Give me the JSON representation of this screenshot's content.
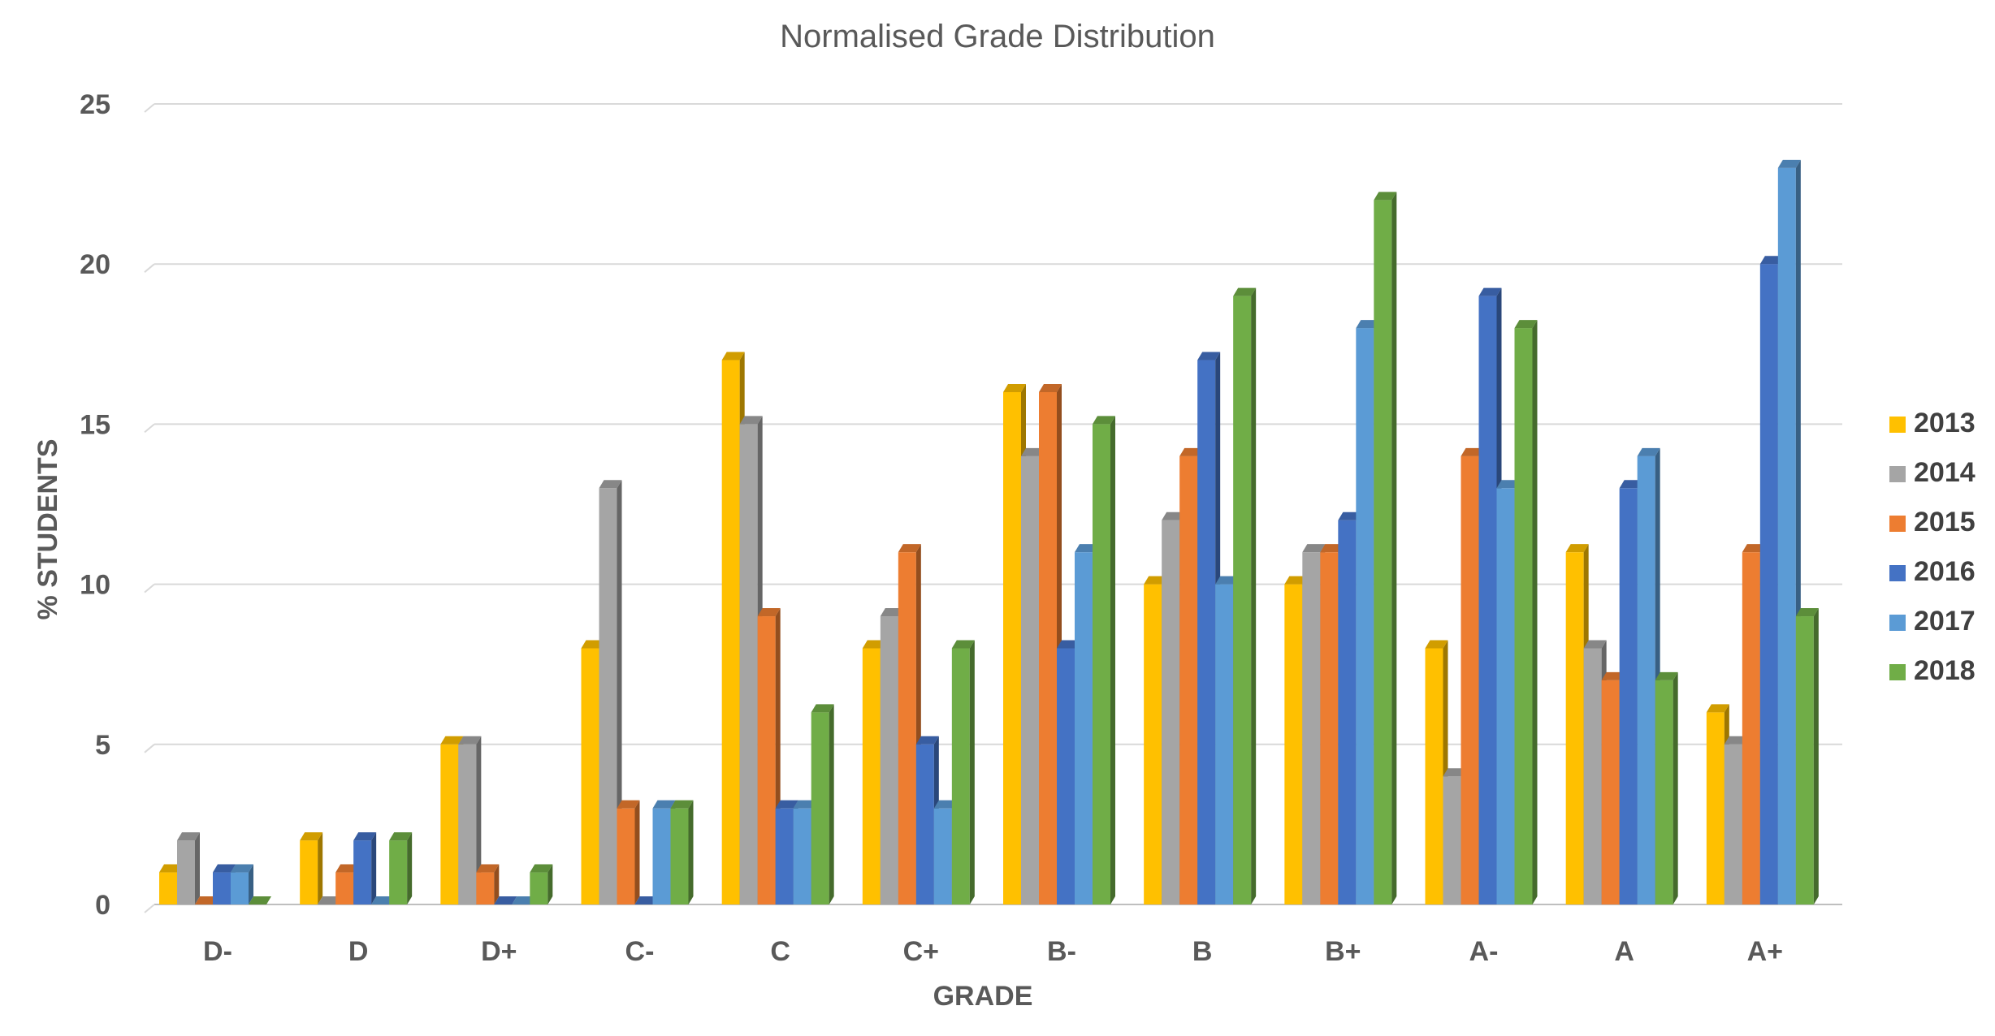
{
  "chart_data": {
    "type": "bar",
    "title": "Normalised Grade Distribution",
    "xlabel": "GRADE",
    "ylabel": "% STUDENTS",
    "ylim": [
      0,
      25
    ],
    "yticks": [
      0,
      5,
      10,
      15,
      20,
      25
    ],
    "grid": true,
    "legend_position": "right",
    "categories": [
      "D-",
      "D",
      "D+",
      "C-",
      "C",
      "C+",
      "B-",
      "B",
      "B+",
      "A-",
      "A",
      "A+"
    ],
    "series": [
      {
        "name": "2013",
        "color": "#FFC000",
        "values": [
          1,
          2,
          5,
          8,
          17,
          8,
          16,
          10,
          10,
          8,
          11,
          6
        ]
      },
      {
        "name": "2014",
        "color": "#A5A5A5",
        "values": [
          2,
          0,
          5,
          13,
          15,
          9,
          14,
          12,
          11,
          4,
          8,
          5
        ]
      },
      {
        "name": "2015",
        "color": "#ED7D31",
        "values": [
          0,
          1,
          1,
          3,
          9,
          11,
          16,
          14,
          11,
          14,
          7,
          11
        ]
      },
      {
        "name": "2016",
        "color": "#4472C4",
        "values": [
          1,
          2,
          0,
          0,
          3,
          5,
          8,
          17,
          12,
          19,
          13,
          20
        ]
      },
      {
        "name": "2017",
        "color": "#5B9BD5",
        "values": [
          1,
          0,
          0,
          3,
          3,
          3,
          11,
          10,
          18,
          13,
          14,
          23
        ]
      },
      {
        "name": "2018",
        "color": "#70AD47",
        "values": [
          0,
          2,
          1,
          3,
          6,
          8,
          15,
          19,
          22,
          18,
          7,
          9
        ]
      }
    ]
  }
}
